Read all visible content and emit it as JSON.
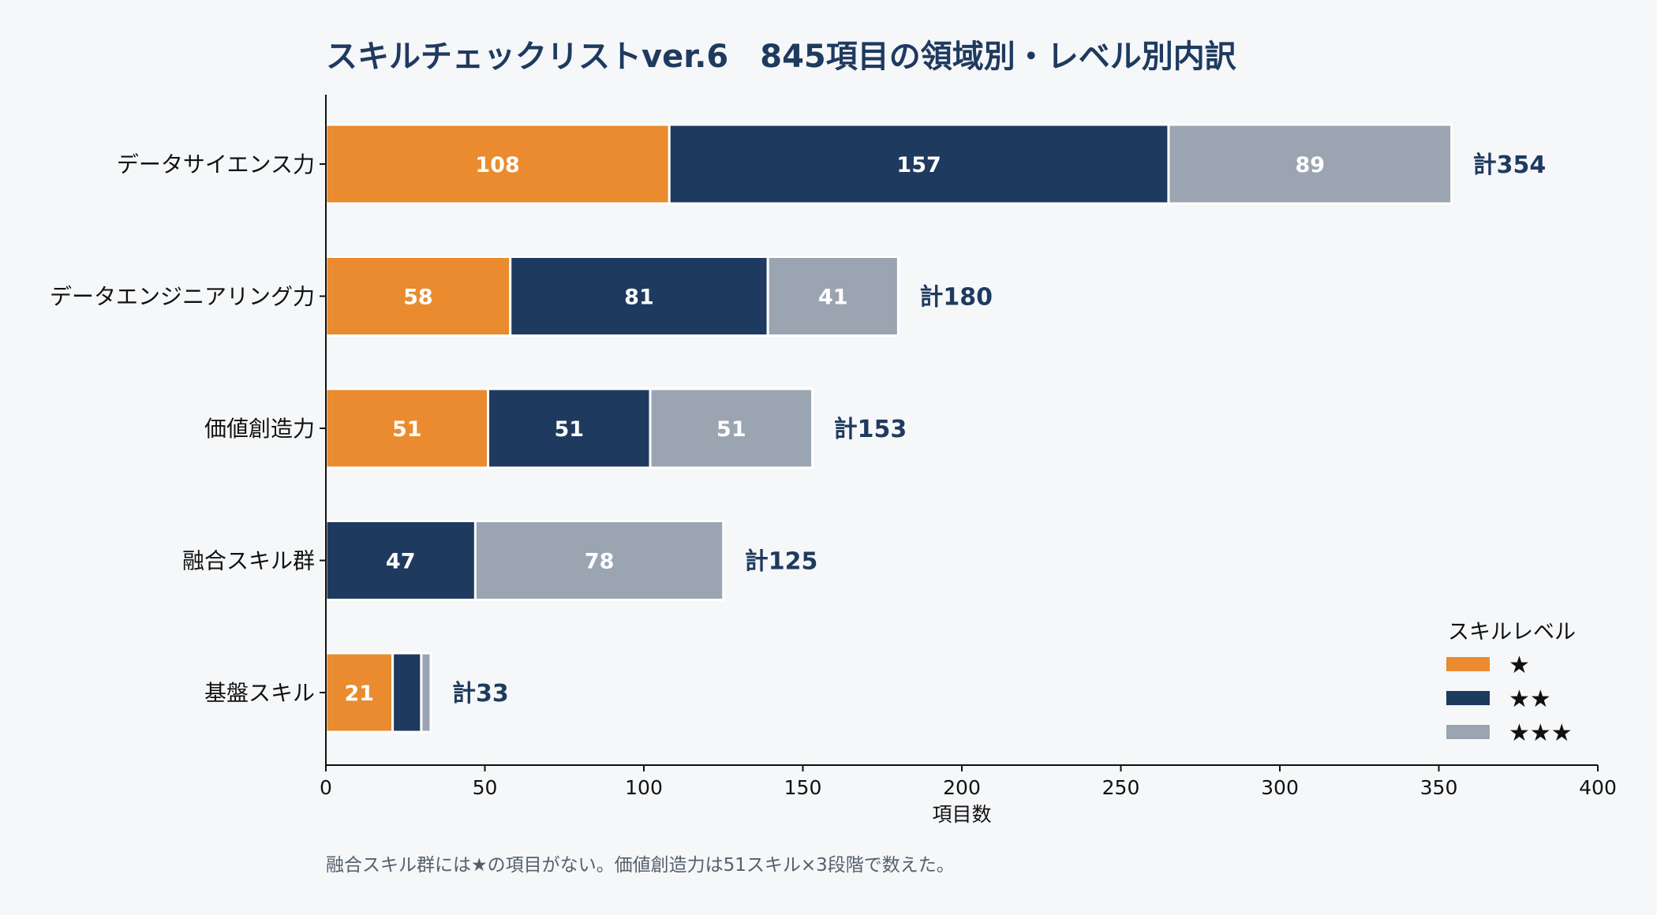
{
  "chart_data": {
    "type": "bar",
    "orientation": "horizontal",
    "stacked": true,
    "title": "スキルチェックリストver.6　845項目の領域別・レベル別内訳",
    "xlabel": "項目数",
    "ylabel": "",
    "xlim": [
      0,
      400
    ],
    "xticks": [
      "0",
      "50",
      "100",
      "150",
      "200",
      "250",
      "300",
      "350",
      "400"
    ],
    "grid": false,
    "categories": [
      "データサイエンス力",
      "データエンジニアリング力",
      "価値創造力",
      "融合スキル群",
      "基盤スキル"
    ],
    "series": [
      {
        "name": "★",
        "color": "#e98b2e",
        "values": [
          108,
          58,
          51,
          0,
          21
        ]
      },
      {
        "name": "★★",
        "color": "#1f3a5f",
        "values": [
          157,
          81,
          51,
          47,
          9
        ]
      },
      {
        "name": "★★★",
        "color": "#9ba5b1",
        "values": [
          89,
          41,
          51,
          78,
          3
        ]
      }
    ],
    "segment_labels": [
      [
        "108",
        "157",
        "89"
      ],
      [
        "58",
        "81",
        "41"
      ],
      [
        "51",
        "51",
        "51"
      ],
      [
        "",
        "47",
        "78"
      ],
      [
        "21",
        "",
        ""
      ]
    ],
    "totals": [
      354,
      180,
      153,
      125,
      33
    ],
    "total_labels": [
      "計354",
      "計180",
      "計153",
      "計125",
      "計33"
    ],
    "legend": {
      "title": "スキルレベル",
      "placement": "lower-right"
    },
    "note": "融合スキル群には★の項目がない。価値創造力は51スキル×3段階で数えた。"
  }
}
